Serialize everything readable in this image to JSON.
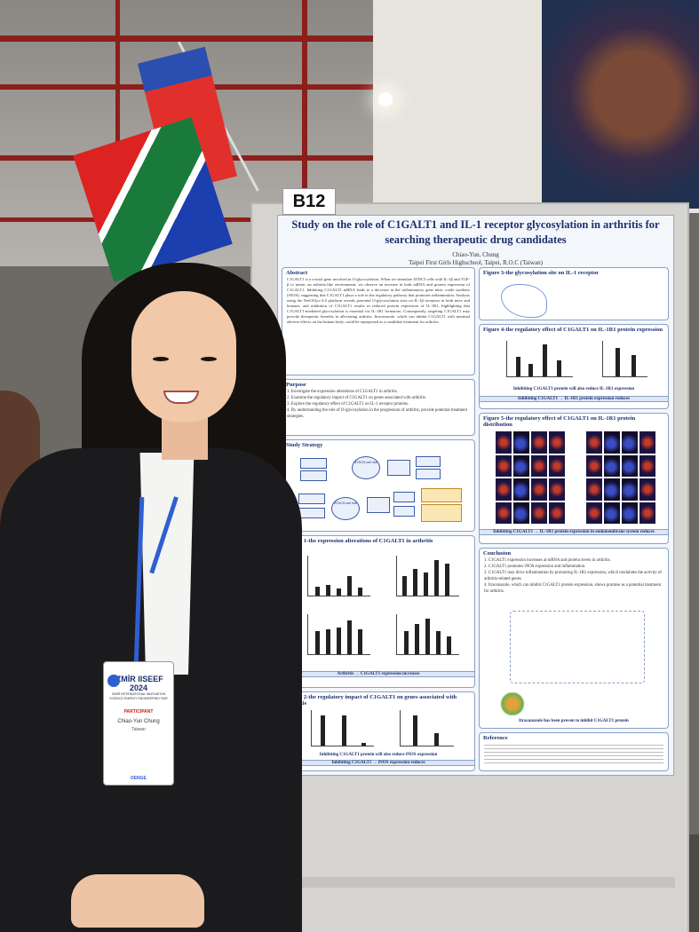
{
  "board": {
    "label": "B12"
  },
  "poster": {
    "title": "Study on the role of C1GALT1 and IL-1 receptor glycosylation in arthritis for searching therapeutic drug candidates",
    "author": "Chiao-Yun, Chung",
    "affiliation": "Taipei First Girls Highschool, Taipei, R.O.C (Taiwan)",
    "abstract": {
      "heading": "Abstract",
      "text": "C1GALT1 is a crucial gene involved in O-glycosylation. When we stimulate ATDC5 cells with IL-1β and TGF-β to mimic an arthritis-like environment, we observe an increase in both mRNA and protein expression of C1GALT1. Inhibiting C1GALT1 mRNA leads to a decrease in the inflammatory gene nitric oxide synthase (iNOS), suggesting that C1GALT1 plays a role in the regulatory pathway that promotes inflammation. Analysis using the NetOGlyc-4.0 platform reveals potential O-glycosylation sites on IL-1β receptors in both mice and humans, and inhibition of C1GALT1 results in reduced protein expression of IL-1R1, highlighting that C1GALT1-mediated glycosylation is essential for IL-1R1 formation. Consequently, targeting C1GALT1 may provide therapeutic benefits in alleviating arthritis. Itraconazole, which can inhibit C1GALT1 with minimal adverse effects on the human body, could be repurposed as a candidate treatment for arthritis."
    },
    "purpose": {
      "heading": "Purpose",
      "items": [
        "1. Investigate the expression alterations of C1GALT1 in arthritis.",
        "2. Examine the regulatory impact of C1GALT1 on genes associated with arthritis.",
        "3. Explore the regulatory effect of C1GALT1 on IL-1 receptor proteins.",
        "4. By understanding the role of O-glycosylation in the progression of arthritis, provide potential treatment strategies."
      ]
    },
    "strategy": {
      "heading": "Study Strategy",
      "nodes": [
        "ATDC5 cell line",
        "ATDC5 cell line"
      ]
    },
    "fig1": {
      "heading": "Figure 1-the expression alterations of C1GALT1 in arthritis",
      "caption": "Arthritis → C1GALT1 expression increases"
    },
    "fig2": {
      "heading": "Figure 2-the regulatory impact of C1GALT1 on genes associated with arthritis",
      "caption1": "Inhibiting C1GALT1 protein will also reduce iNOS expression",
      "caption2": "Inhibiting C1GALT1 → iNOS expression reduces"
    },
    "fig3": {
      "heading": "Figure 3-the glycosylation site on IL-1 receptor"
    },
    "fig4": {
      "heading": "Figure 4-the regulatory effect of C1GALT1 on IL-1R1 protein expression",
      "caption1": "Inhibiting C1GALT1 protein will also reduce IL-1R1 expression",
      "caption2": "Inhibiting C1GALT1 → IL-1R1 protein expression reduces"
    },
    "fig5": {
      "heading": "Figure 5-the regulatory effect of C1GALT1 on IL-1R1 protein distribution",
      "caption": "Inhibiting C1GALT1 → IL-1R1 protein expression in endomembrane system reduces"
    },
    "conclusion": {
      "heading": "Conclusion",
      "items": [
        "1. C1GALT1 expression increases at mRNA and protein levels in arthritis.",
        "2. C1GALT1 promotes iNOS expression and inflammation.",
        "3. C1GALT1 may drive inflammation by promoting IL-1R1 expression, which modulates the activity of arthritis-related genes.",
        "4. Itraconazole, which can inhibit C1GALT1 protein expression, shows promise as a potential treatment for arthritis."
      ],
      "note": "Itraconazole has been proven to inhibit C1GALT1 protein"
    },
    "reference": {
      "heading": "Reference"
    }
  },
  "badge": {
    "event": "İZMİR IISEEF 2024",
    "subtitle": "IZMIR INTERNATIONAL INNOVATION SCIENCE ENERGY ENGINEERING FAIR",
    "role": "PARTICIPANT",
    "name": "Chiao-Yun Chung",
    "country": "Taiwan",
    "footer": "DENGE"
  },
  "colors": {
    "poster_title": "#1b2f6e",
    "lanyard": "#2f5fd1",
    "truss": "#8c1f1c"
  }
}
